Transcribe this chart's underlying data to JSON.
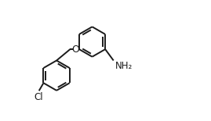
{
  "background": "#ffffff",
  "line_color": "#1a1a1a",
  "line_width": 1.4,
  "font_size": 8.5,
  "label_Cl": "Cl",
  "label_O": "O",
  "label_NH2": "NH₂",
  "fig_width": 2.69,
  "fig_height": 1.55,
  "dpi": 100,
  "xlim": [
    0.0,
    10.5
  ],
  "ylim": [
    -1.5,
    6.5
  ]
}
